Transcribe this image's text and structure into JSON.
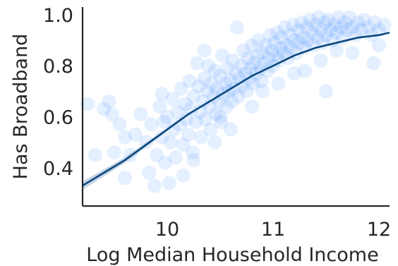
{
  "chart_data": {
    "type": "scatter",
    "title": "",
    "xlabel": "Log Median Household Income",
    "ylabel": "Has Broadband",
    "xlim": [
      9.2,
      12.1
    ],
    "ylim": [
      0.25,
      1.03
    ],
    "x_ticks": [
      {
        "value": 10,
        "label": "10"
      },
      {
        "value": 11,
        "label": "11"
      },
      {
        "value": 12,
        "label": "12"
      }
    ],
    "y_ticks": [
      {
        "value": 0.4,
        "label": "0.4"
      },
      {
        "value": 0.6,
        "label": "0.6"
      },
      {
        "value": 0.8,
        "label": "0.8"
      },
      {
        "value": 1.0,
        "label": "1.0"
      }
    ],
    "grid": false,
    "colors": {
      "points": "#4d94ff",
      "fit_line": "#08467b",
      "confidence_band": "#9fb6d3",
      "axes": "#262626"
    },
    "point_alpha": 0.15,
    "fit": {
      "type": "logistic",
      "x": [
        9.2,
        9.4,
        9.6,
        9.8,
        10.0,
        10.2,
        10.4,
        10.6,
        10.8,
        11.0,
        11.2,
        11.4,
        11.6,
        11.8,
        12.0,
        12.1
      ],
      "y": [
        0.33,
        0.38,
        0.43,
        0.49,
        0.55,
        0.61,
        0.66,
        0.71,
        0.76,
        0.8,
        0.84,
        0.87,
        0.89,
        0.91,
        0.92,
        0.93
      ]
    },
    "points": [
      {
        "x": 9.25,
        "y": 0.65
      },
      {
        "x": 9.32,
        "y": 0.45
      },
      {
        "x": 9.4,
        "y": 0.63
      },
      {
        "x": 9.48,
        "y": 0.61
      },
      {
        "x": 9.5,
        "y": 0.46
      },
      {
        "x": 9.55,
        "y": 0.57
      },
      {
        "x": 9.6,
        "y": 0.36
      },
      {
        "x": 9.65,
        "y": 0.45
      },
      {
        "x": 9.7,
        "y": 0.53
      },
      {
        "x": 9.75,
        "y": 0.61
      },
      {
        "x": 9.8,
        "y": 0.5
      },
      {
        "x": 9.83,
        "y": 0.38
      },
      {
        "x": 9.85,
        "y": 0.57
      },
      {
        "x": 9.88,
        "y": 0.33
      },
      {
        "x": 9.9,
        "y": 0.45
      },
      {
        "x": 9.93,
        "y": 0.64
      },
      {
        "x": 9.95,
        "y": 0.52
      },
      {
        "x": 9.97,
        "y": 0.58
      },
      {
        "x": 9.98,
        "y": 0.42
      },
      {
        "x": 10.0,
        "y": 0.6
      },
      {
        "x": 10.02,
        "y": 0.34
      },
      {
        "x": 10.03,
        "y": 0.5
      },
      {
        "x": 10.05,
        "y": 0.67
      },
      {
        "x": 10.06,
        "y": 0.55
      },
      {
        "x": 10.08,
        "y": 0.44
      },
      {
        "x": 10.1,
        "y": 0.62
      },
      {
        "x": 10.12,
        "y": 0.57
      },
      {
        "x": 10.13,
        "y": 0.71
      },
      {
        "x": 10.15,
        "y": 0.49
      },
      {
        "x": 10.17,
        "y": 0.65
      },
      {
        "x": 10.18,
        "y": 0.59
      },
      {
        "x": 10.2,
        "y": 0.53
      },
      {
        "x": 10.21,
        "y": 0.74
      },
      {
        "x": 10.22,
        "y": 0.63
      },
      {
        "x": 10.24,
        "y": 0.46
      },
      {
        "x": 10.25,
        "y": 0.68
      },
      {
        "x": 10.27,
        "y": 0.58
      },
      {
        "x": 10.28,
        "y": 0.81
      },
      {
        "x": 10.3,
        "y": 0.72
      },
      {
        "x": 10.31,
        "y": 0.62
      },
      {
        "x": 10.32,
        "y": 0.52
      },
      {
        "x": 10.34,
        "y": 0.66
      },
      {
        "x": 10.35,
        "y": 0.75
      },
      {
        "x": 10.36,
        "y": 0.59
      },
      {
        "x": 10.38,
        "y": 0.7
      },
      {
        "x": 10.39,
        "y": 0.8
      },
      {
        "x": 10.4,
        "y": 0.64
      },
      {
        "x": 10.41,
        "y": 0.55
      },
      {
        "x": 10.42,
        "y": 0.73
      },
      {
        "x": 10.44,
        "y": 0.68
      },
      {
        "x": 10.45,
        "y": 0.78
      },
      {
        "x": 10.46,
        "y": 0.61
      },
      {
        "x": 10.47,
        "y": 0.71
      },
      {
        "x": 10.49,
        "y": 0.66
      },
      {
        "x": 10.5,
        "y": 0.76
      },
      {
        "x": 10.51,
        "y": 0.58
      },
      {
        "x": 10.52,
        "y": 0.84
      },
      {
        "x": 10.53,
        "y": 0.69
      },
      {
        "x": 10.55,
        "y": 0.73
      },
      {
        "x": 10.56,
        "y": 0.64
      },
      {
        "x": 10.57,
        "y": 0.79
      },
      {
        "x": 10.58,
        "y": 0.7
      },
      {
        "x": 10.6,
        "y": 0.74
      },
      {
        "x": 10.61,
        "y": 0.66
      },
      {
        "x": 10.62,
        "y": 0.82
      },
      {
        "x": 10.63,
        "y": 0.71
      },
      {
        "x": 10.65,
        "y": 0.77
      },
      {
        "x": 10.66,
        "y": 0.95
      },
      {
        "x": 10.67,
        "y": 0.68
      },
      {
        "x": 10.68,
        "y": 0.75
      },
      {
        "x": 10.7,
        "y": 0.8
      },
      {
        "x": 10.71,
        "y": 0.72
      },
      {
        "x": 10.72,
        "y": 0.86
      },
      {
        "x": 10.74,
        "y": 0.77
      },
      {
        "x": 10.75,
        "y": 0.7
      },
      {
        "x": 10.76,
        "y": 0.83
      },
      {
        "x": 10.77,
        "y": 0.75
      },
      {
        "x": 10.79,
        "y": 0.79
      },
      {
        "x": 10.8,
        "y": 0.88
      },
      {
        "x": 10.81,
        "y": 0.73
      },
      {
        "x": 10.82,
        "y": 0.81
      },
      {
        "x": 10.84,
        "y": 0.77
      },
      {
        "x": 10.85,
        "y": 0.84
      },
      {
        "x": 10.86,
        "y": 0.9
      },
      {
        "x": 10.88,
        "y": 0.79
      },
      {
        "x": 10.89,
        "y": 0.74
      },
      {
        "x": 10.9,
        "y": 0.85
      },
      {
        "x": 10.92,
        "y": 0.81
      },
      {
        "x": 10.93,
        "y": 0.88
      },
      {
        "x": 10.95,
        "y": 0.78
      },
      {
        "x": 10.96,
        "y": 0.83
      },
      {
        "x": 10.97,
        "y": 0.92
      },
      {
        "x": 10.99,
        "y": 0.86
      },
      {
        "x": 11.0,
        "y": 0.8
      },
      {
        "x": 11.01,
        "y": 0.89
      },
      {
        "x": 11.03,
        "y": 0.84
      },
      {
        "x": 11.04,
        "y": 0.93
      },
      {
        "x": 11.05,
        "y": 0.82
      },
      {
        "x": 11.07,
        "y": 0.87
      },
      {
        "x": 11.08,
        "y": 0.91
      },
      {
        "x": 11.1,
        "y": 0.85
      },
      {
        "x": 11.11,
        "y": 0.95
      },
      {
        "x": 11.13,
        "y": 0.88
      },
      {
        "x": 11.14,
        "y": 0.83
      },
      {
        "x": 11.16,
        "y": 0.92
      },
      {
        "x": 11.17,
        "y": 0.87
      },
      {
        "x": 11.19,
        "y": 0.96
      },
      {
        "x": 11.2,
        "y": 0.9
      },
      {
        "x": 11.22,
        "y": 0.85
      },
      {
        "x": 11.24,
        "y": 0.94
      },
      {
        "x": 11.25,
        "y": 0.89
      },
      {
        "x": 11.27,
        "y": 0.97
      },
      {
        "x": 11.28,
        "y": 0.91
      },
      {
        "x": 11.3,
        "y": 0.87
      },
      {
        "x": 11.32,
        "y": 0.95
      },
      {
        "x": 11.33,
        "y": 0.9
      },
      {
        "x": 11.35,
        "y": 0.98
      },
      {
        "x": 11.37,
        "y": 0.93
      },
      {
        "x": 11.38,
        "y": 0.88
      },
      {
        "x": 11.4,
        "y": 0.96
      },
      {
        "x": 11.42,
        "y": 0.91
      },
      {
        "x": 11.43,
        "y": 0.99
      },
      {
        "x": 11.45,
        "y": 0.94
      },
      {
        "x": 11.47,
        "y": 0.89
      },
      {
        "x": 11.49,
        "y": 0.97
      },
      {
        "x": 11.5,
        "y": 0.92
      },
      {
        "x": 11.52,
        "y": 0.98
      },
      {
        "x": 11.54,
        "y": 0.94
      },
      {
        "x": 11.56,
        "y": 0.9
      },
      {
        "x": 11.58,
        "y": 0.96
      },
      {
        "x": 11.6,
        "y": 0.93
      },
      {
        "x": 11.62,
        "y": 0.99
      },
      {
        "x": 11.64,
        "y": 0.95
      },
      {
        "x": 11.66,
        "y": 0.91
      },
      {
        "x": 11.68,
        "y": 0.97
      },
      {
        "x": 11.7,
        "y": 0.94
      },
      {
        "x": 11.72,
        "y": 0.99
      },
      {
        "x": 11.75,
        "y": 0.95
      },
      {
        "x": 11.78,
        "y": 0.92
      },
      {
        "x": 11.8,
        "y": 0.97
      },
      {
        "x": 11.83,
        "y": 0.94
      },
      {
        "x": 11.86,
        "y": 0.98
      },
      {
        "x": 11.9,
        "y": 0.95
      },
      {
        "x": 11.93,
        "y": 0.92
      },
      {
        "x": 11.96,
        "y": 0.97
      },
      {
        "x": 12.0,
        "y": 0.94
      },
      {
        "x": 12.05,
        "y": 0.96
      },
      {
        "x": 10.35,
        "y": 0.86
      },
      {
        "x": 10.5,
        "y": 0.6
      },
      {
        "x": 10.9,
        "y": 0.7
      },
      {
        "x": 11.2,
        "y": 0.77
      },
      {
        "x": 11.45,
        "y": 0.82
      },
      {
        "x": 11.6,
        "y": 0.86
      },
      {
        "x": 11.75,
        "y": 0.85
      },
      {
        "x": 11.3,
        "y": 0.78
      },
      {
        "x": 10.6,
        "y": 0.55
      },
      {
        "x": 9.95,
        "y": 0.69
      },
      {
        "x": 10.15,
        "y": 0.37
      },
      {
        "x": 10.8,
        "y": 0.64
      },
      {
        "x": 11.5,
        "y": 0.7
      },
      {
        "x": 11.95,
        "y": 0.81
      },
      {
        "x": 12.0,
        "y": 0.88
      },
      {
        "x": 9.45,
        "y": 0.66
      },
      {
        "x": 9.6,
        "y": 0.52
      },
      {
        "x": 10.25,
        "y": 0.43
      },
      {
        "x": 10.45,
        "y": 0.5
      },
      {
        "x": 11.05,
        "y": 0.73
      }
    ]
  }
}
